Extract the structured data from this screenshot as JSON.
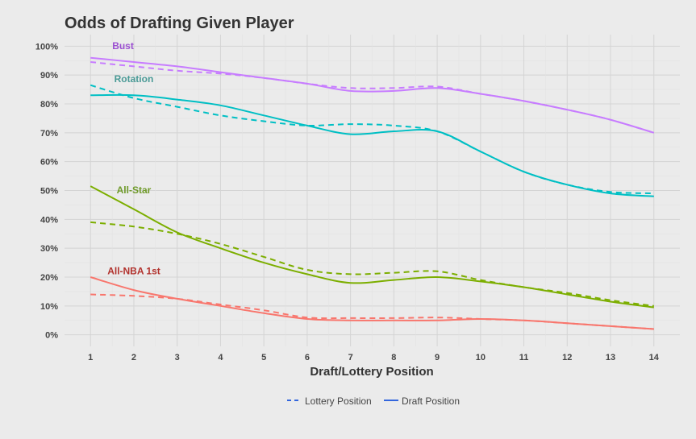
{
  "chart_data": {
    "type": "line",
    "title": "Odds of Drafting Given Player",
    "xlabel": "Draft/Lottery Position",
    "ylabel": "",
    "xlim": [
      0.4,
      14.6
    ],
    "ylim": [
      -0.04,
      1.04
    ],
    "x_ticks": [
      1,
      2,
      3,
      4,
      5,
      6,
      7,
      8,
      9,
      10,
      11,
      12,
      13,
      14
    ],
    "y_ticks": [
      0,
      0.1,
      0.2,
      0.3,
      0.4,
      0.5,
      0.6,
      0.7,
      0.8,
      0.9,
      1.0
    ],
    "y_tick_labels": [
      "0%",
      "10%",
      "20%",
      "30%",
      "40%",
      "50%",
      "60%",
      "70%",
      "80%",
      "90%",
      "100%"
    ],
    "grid": true,
    "legend_position": "bottom",
    "legend": [
      {
        "label": "Lottery Position",
        "style": "dashed"
      },
      {
        "label": "Draft Position",
        "style": "solid"
      }
    ],
    "x": [
      1,
      2,
      3,
      4,
      5,
      6,
      7,
      8,
      9,
      10,
      11,
      12,
      13,
      14
    ],
    "groups": [
      {
        "name": "Bust",
        "color": "#c77cff",
        "label_color": "#9b4fd1",
        "label_anchor": [
          1.75,
          0.99
        ],
        "draft_position": [
          0.96,
          0.945,
          0.93,
          0.91,
          0.89,
          0.87,
          0.845,
          0.845,
          0.855,
          0.835,
          0.81,
          0.78,
          0.745,
          0.7
        ],
        "lottery_position": [
          0.945,
          0.93,
          0.915,
          0.905,
          0.89,
          0.87,
          0.855,
          0.855,
          0.86,
          0.835,
          0.81,
          0.78,
          0.745,
          0.7
        ]
      },
      {
        "name": "Rotation",
        "color": "#00bfc4",
        "label_color": "#4a9a96",
        "label_anchor": [
          2.0,
          0.875
        ],
        "draft_position": [
          0.83,
          0.83,
          0.815,
          0.795,
          0.76,
          0.725,
          0.695,
          0.705,
          0.705,
          0.635,
          0.565,
          0.52,
          0.49,
          0.48
        ],
        "lottery_position": [
          0.865,
          0.82,
          0.79,
          0.76,
          0.74,
          0.725,
          0.73,
          0.725,
          0.705,
          0.635,
          0.565,
          0.52,
          0.495,
          0.49
        ]
      },
      {
        "name": "All-Star",
        "color": "#7cae00",
        "label_color": "#6f9a2a",
        "label_anchor": [
          2.0,
          0.49
        ],
        "draft_position": [
          0.515,
          0.435,
          0.355,
          0.3,
          0.25,
          0.21,
          0.18,
          0.19,
          0.2,
          0.185,
          0.165,
          0.14,
          0.115,
          0.095
        ],
        "lottery_position": [
          0.39,
          0.375,
          0.35,
          0.315,
          0.27,
          0.225,
          0.21,
          0.215,
          0.22,
          0.19,
          0.165,
          0.145,
          0.12,
          0.1
        ]
      },
      {
        "name": "All-NBA 1st",
        "color": "#f8766d",
        "label_color": "#b2322d",
        "label_anchor": [
          2.0,
          0.21
        ],
        "draft_position": [
          0.2,
          0.155,
          0.125,
          0.1,
          0.075,
          0.055,
          0.05,
          0.05,
          0.05,
          0.055,
          0.05,
          0.04,
          0.03,
          0.02
        ],
        "lottery_position": [
          0.14,
          0.135,
          0.125,
          0.105,
          0.085,
          0.06,
          0.058,
          0.058,
          0.06,
          0.055,
          0.05,
          0.04,
          0.03,
          0.02
        ]
      }
    ]
  }
}
